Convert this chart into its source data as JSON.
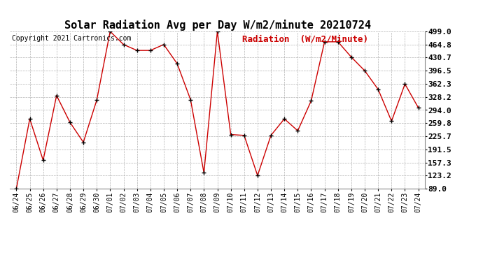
{
  "title": "Solar Radiation Avg per Day W/m2/minute 20210724",
  "copyright": "Copyright 2021 Cartronics.com",
  "legend_label": "Radiation  (W/m2/Minute)",
  "dates": [
    "06/24",
    "06/25",
    "06/26",
    "06/27",
    "06/28",
    "06/29",
    "06/30",
    "07/01",
    "07/02",
    "07/03",
    "07/04",
    "07/05",
    "07/06",
    "07/07",
    "07/08",
    "07/09",
    "07/10",
    "07/11",
    "07/12",
    "07/13",
    "07/14",
    "07/15",
    "07/16",
    "07/17",
    "07/18",
    "07/19",
    "07/20",
    "07/21",
    "07/22",
    "07/23",
    "07/24"
  ],
  "values": [
    89.0,
    271.0,
    163.0,
    332.0,
    262.0,
    210.0,
    320.0,
    499.0,
    464.8,
    449.5,
    449.5,
    464.8,
    415.0,
    321.0,
    130.0,
    499.0,
    230.0,
    228.0,
    123.2,
    228.0,
    271.0,
    240.0,
    318.0,
    472.0,
    472.0,
    432.0,
    396.5,
    348.0,
    265.0,
    362.0,
    300.0
  ],
  "ylim": [
    89.0,
    499.0
  ],
  "yticks": [
    89.0,
    123.2,
    157.3,
    191.5,
    225.7,
    259.8,
    294.0,
    328.2,
    362.3,
    396.5,
    430.7,
    464.8,
    499.0
  ],
  "line_color": "#cc0000",
  "marker_color": "#000000",
  "background_color": "#ffffff",
  "grid_color": "#aaaaaa",
  "title_fontsize": 11,
  "copyright_fontsize": 7,
  "legend_fontsize": 9,
  "tick_fontsize": 7,
  "ytick_fontsize": 8
}
